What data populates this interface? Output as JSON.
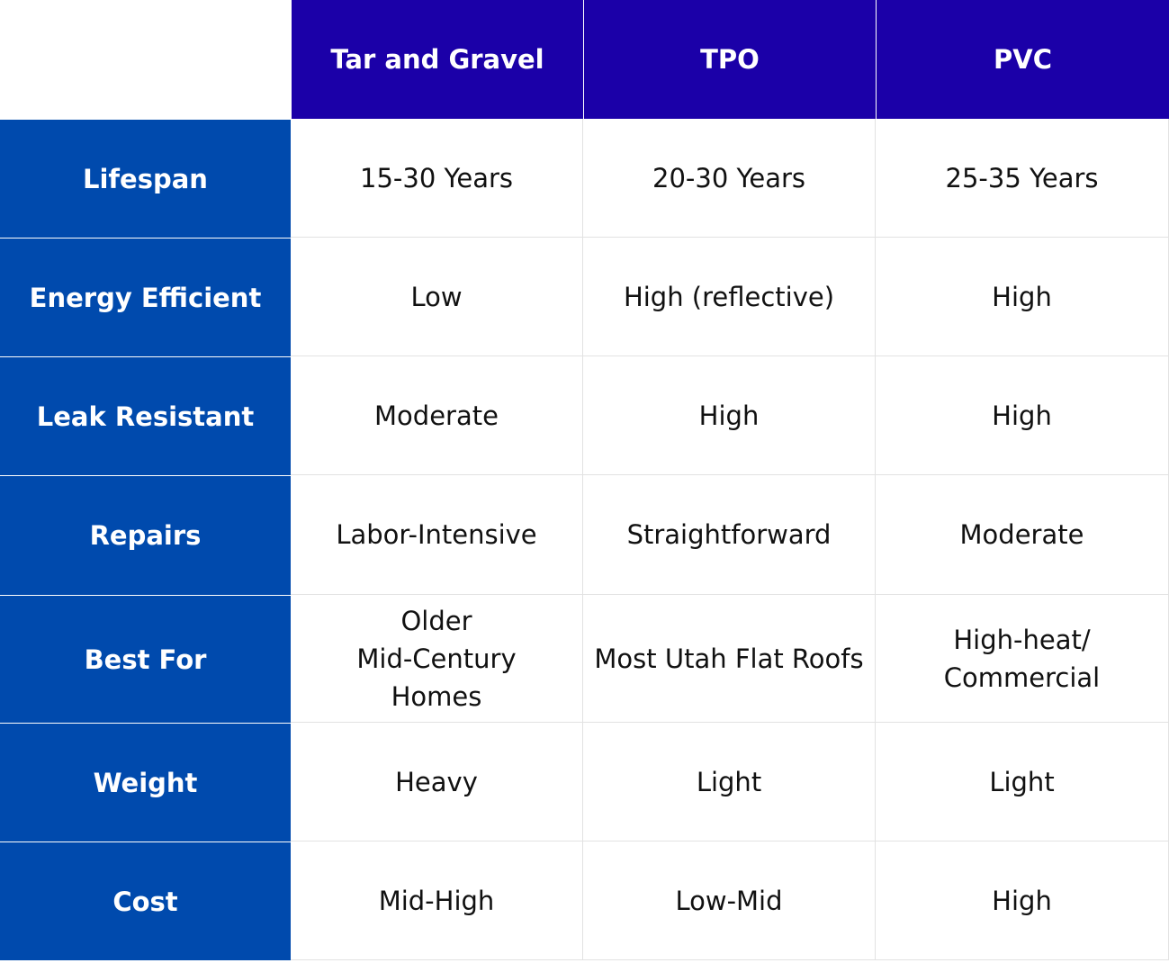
{
  "table": {
    "columns": [
      "Tar and Gravel",
      "TPO",
      "PVC"
    ],
    "rows": [
      {
        "label": "Lifespan",
        "cells": [
          "15-30 Years",
          "20-30 Years",
          "25-35 Years"
        ]
      },
      {
        "label": "Energy Efficient",
        "cells": [
          "Low",
          "High (reflective)",
          "High"
        ]
      },
      {
        "label": "Leak Resistant",
        "cells": [
          "Moderate",
          "High",
          "High"
        ]
      },
      {
        "label": "Repairs",
        "cells": [
          "Labor-Intensive",
          "Straightforward",
          "Moderate"
        ]
      },
      {
        "label": "Best For",
        "cells": [
          "Older\nMid-Century\nHomes",
          "Most Utah Flat Roofs",
          "High-heat/\nCommercial"
        ]
      },
      {
        "label": "Weight",
        "cells": [
          "Heavy",
          "Light",
          "Light"
        ]
      },
      {
        "label": "Cost",
        "cells": [
          "Mid-High",
          "Low-Mid",
          "High"
        ]
      }
    ]
  }
}
